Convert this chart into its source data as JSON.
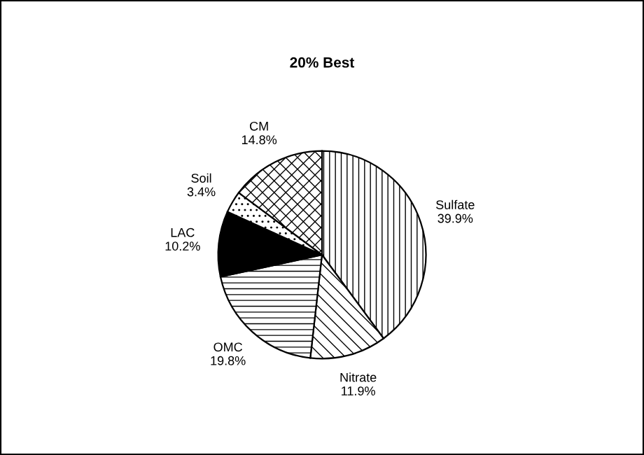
{
  "chart_data": {
    "type": "pie",
    "title": "20% Best",
    "categories": [
      "Sulfate",
      "Nitrate",
      "OMC",
      "LAC",
      "Soil",
      "CM"
    ],
    "values": [
      39.9,
      11.9,
      19.8,
      10.2,
      3.4,
      14.8
    ],
    "value_labels": [
      "39.9%",
      "11.9%",
      "19.8%",
      "10.2%",
      "3.4%",
      "14.8%"
    ],
    "colors": [
      "#ffffff",
      "#ffffff",
      "#ffffff",
      "#000000",
      "#ffffff",
      "#ffffff"
    ],
    "legend": false
  }
}
